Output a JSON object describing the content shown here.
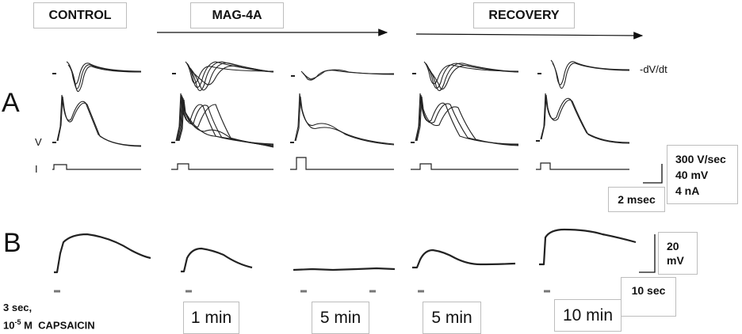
{
  "headers": {
    "control": "CONTROL",
    "mag": "MAG-4A",
    "recovery": "RECOVERY"
  },
  "panels": {
    "a": "A",
    "b": "B"
  },
  "trace_labels": {
    "dvdt": "-dV/dt",
    "v": "V",
    "i": "I"
  },
  "scale_a": {
    "rate": "300 V/sec",
    "voltage": "40 mV",
    "current": "4 nA",
    "time": "2 msec"
  },
  "scale_b": {
    "voltage_line1": "20",
    "voltage_line2": "mV",
    "time": "10 sec"
  },
  "stimulus": {
    "duration": "3 sec,",
    "conc_base": "10",
    "conc_exp": "-5",
    "conc_rest": " M  CAPSAICIN"
  },
  "time_labels": [
    "1 min",
    "5 min",
    "5 min",
    "10 min"
  ]
}
